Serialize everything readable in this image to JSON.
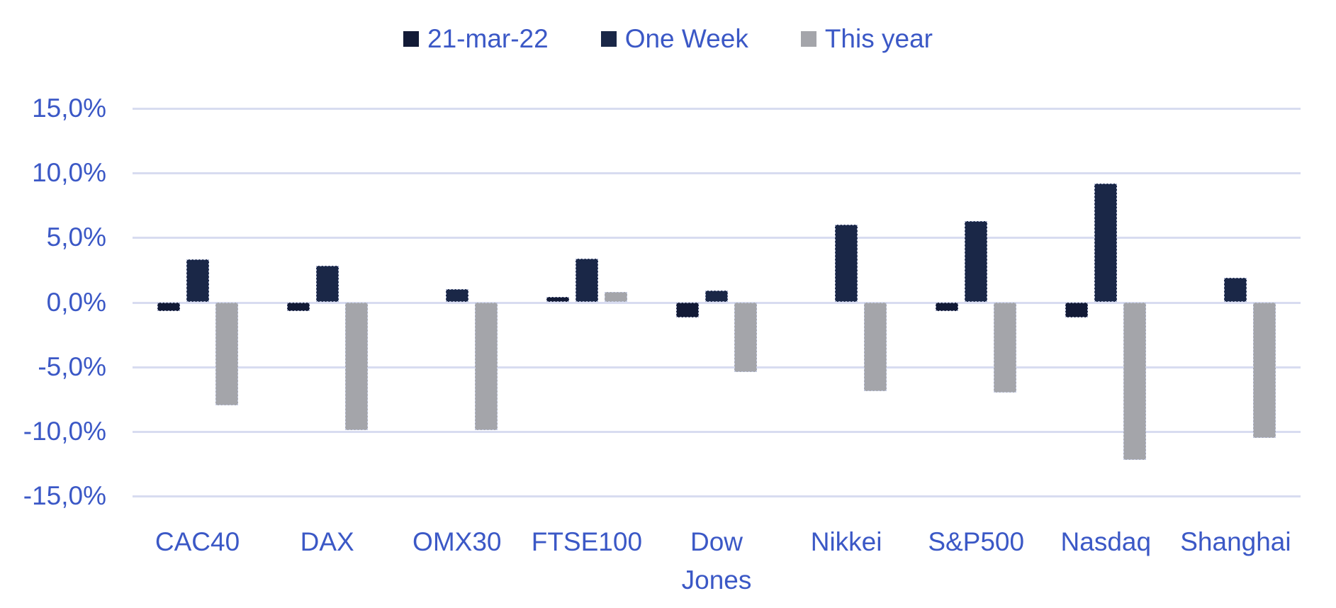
{
  "chart_data": {
    "type": "bar",
    "title": "",
    "categories": [
      "CAC40",
      "DAX",
      "OMX30",
      "FTSE100",
      "Dow Jones",
      "Nikkei",
      "S&P500",
      "Nasdaq",
      "Shanghai"
    ],
    "series": [
      {
        "name": "21-mar-22",
        "color": "#121a36",
        "values": [
          -0.7,
          -0.7,
          0.0,
          0.4,
          -1.2,
          0.0,
          -0.7,
          -1.2,
          0.0
        ]
      },
      {
        "name": "One Week",
        "color": "#1a2747",
        "values": [
          3.3,
          2.8,
          1.0,
          3.4,
          0.9,
          6.0,
          6.3,
          9.2,
          1.9
        ]
      },
      {
        "name": "This year",
        "color": "#a4a5aa",
        "values": [
          -8.0,
          -9.9,
          -9.9,
          0.8,
          -5.4,
          -6.9,
          -7.0,
          -12.2,
          -10.5
        ]
      }
    ],
    "y_ticks": [
      "15,0%",
      "10,0%",
      "5,0%",
      "0,0%",
      "-5,0%",
      "-10,0%",
      "-15,0%"
    ],
    "ylim": [
      -15,
      15
    ],
    "grid": true,
    "legend_position": "top",
    "xlabel": "",
    "ylabel": ""
  },
  "styles": {
    "text_color": "#3b58c6",
    "grid_color": "#d8dcf0",
    "background": "#ffffff"
  }
}
